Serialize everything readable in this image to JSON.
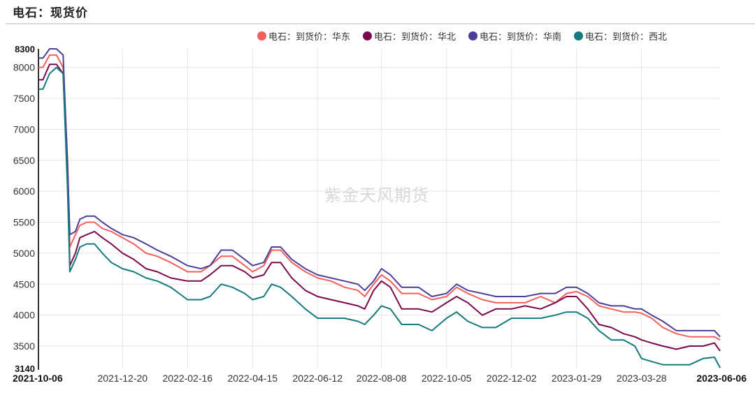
{
  "header": {
    "title": "电石：现货价"
  },
  "watermark": "紫金天风期货",
  "legend": [
    {
      "label": "电石：到货价：华东",
      "color": "#F25F5C"
    },
    {
      "label": "电石：到货价：华北",
      "color": "#7A0A4E"
    },
    {
      "label": "电石：到货价：华南",
      "color": "#4B3F9A"
    },
    {
      "label": "电石：到货价：西北",
      "color": "#157A80"
    }
  ],
  "chart_data": {
    "type": "line",
    "title": "电石：现货价",
    "xlabel": "",
    "ylabel": "",
    "ylim": [
      3140,
      8300
    ],
    "yticks": [
      3140,
      3500,
      4000,
      4500,
      5000,
      5500,
      6000,
      6500,
      7000,
      7500,
      8000,
      8300
    ],
    "xticks": [
      "2021-10-06",
      "2021-12-20",
      "2022-02-16",
      "2022-04-15",
      "2022-06-12",
      "2022-08-08",
      "2022-10-05",
      "2022-12-02",
      "2023-01-29",
      "2023-03-28",
      "2023-06-06"
    ],
    "grid": true,
    "legend_position": "top-right",
    "x": [
      "2021-10-06",
      "2021-10-10",
      "2021-10-16",
      "2021-10-22",
      "2021-10-28",
      "2021-11-01",
      "2021-11-03",
      "2021-11-08",
      "2021-11-12",
      "2021-11-18",
      "2021-11-25",
      "2021-12-02",
      "2021-12-10",
      "2021-12-20",
      "2021-12-30",
      "2022-01-10",
      "2022-01-20",
      "2022-02-01",
      "2022-02-16",
      "2022-02-28",
      "2022-03-08",
      "2022-03-18",
      "2022-03-28",
      "2022-04-08",
      "2022-04-15",
      "2022-04-25",
      "2022-05-02",
      "2022-05-10",
      "2022-05-20",
      "2022-06-01",
      "2022-06-12",
      "2022-06-24",
      "2022-07-06",
      "2022-07-18",
      "2022-07-24",
      "2022-08-01",
      "2022-08-08",
      "2022-08-16",
      "2022-08-26",
      "2022-09-10",
      "2022-09-22",
      "2022-10-05",
      "2022-10-14",
      "2022-10-24",
      "2022-11-06",
      "2022-11-18",
      "2022-12-02",
      "2022-12-14",
      "2022-12-28",
      "2023-01-10",
      "2023-01-20",
      "2023-01-29",
      "2023-02-08",
      "2023-02-18",
      "2023-03-01",
      "2023-03-12",
      "2023-03-22",
      "2023-03-28",
      "2023-04-06",
      "2023-04-16",
      "2023-04-28",
      "2023-05-10",
      "2023-05-22",
      "2023-06-01",
      "2023-06-06"
    ],
    "series": [
      {
        "name": "电石：到货价：华东",
        "values": [
          8000,
          8000,
          8200,
          8200,
          8000,
          6500,
          5100,
          5300,
          5450,
          5500,
          5500,
          5400,
          5350,
          5250,
          5150,
          5000,
          4950,
          4850,
          4700,
          4700,
          4800,
          4950,
          4950,
          4800,
          4700,
          4800,
          5050,
          5050,
          4850,
          4700,
          4600,
          4550,
          4450,
          4400,
          4300,
          4500,
          4650,
          4550,
          4350,
          4350,
          4250,
          4300,
          4450,
          4350,
          4250,
          4200,
          4200,
          4200,
          4300,
          4200,
          4350,
          4380,
          4300,
          4150,
          4100,
          4050,
          4050,
          4030,
          3950,
          3800,
          3700,
          3650,
          3650,
          3650,
          3600
        ]
      },
      {
        "name": "电石：到货价：华北",
        "values": [
          7800,
          7800,
          8050,
          8050,
          7900,
          6200,
          4800,
          5000,
          5250,
          5300,
          5350,
          5250,
          5150,
          5000,
          4900,
          4750,
          4700,
          4600,
          4550,
          4550,
          4650,
          4800,
          4800,
          4700,
          4600,
          4650,
          4850,
          4850,
          4600,
          4400,
          4300,
          4250,
          4200,
          4150,
          4100,
          4400,
          4550,
          4450,
          4100,
          4100,
          4050,
          4200,
          4300,
          4200,
          4000,
          4100,
          4100,
          4150,
          4100,
          4200,
          4300,
          4300,
          4100,
          3850,
          3800,
          3700,
          3650,
          3600,
          3550,
          3500,
          3450,
          3500,
          3500,
          3550,
          3420
        ]
      },
      {
        "name": "电石：到货价：华南",
        "values": [
          8150,
          8150,
          8300,
          8300,
          8200,
          6400,
          5300,
          5350,
          5550,
          5600,
          5600,
          5500,
          5400,
          5300,
          5250,
          5150,
          5050,
          4950,
          4800,
          4750,
          4800,
          5050,
          5050,
          4900,
          4800,
          4850,
          5100,
          5100,
          4900,
          4750,
          4650,
          4600,
          4550,
          4500,
          4400,
          4550,
          4750,
          4650,
          4450,
          4450,
          4300,
          4350,
          4500,
          4400,
          4350,
          4300,
          4300,
          4300,
          4350,
          4350,
          4450,
          4450,
          4350,
          4200,
          4150,
          4150,
          4100,
          4100,
          4000,
          3900,
          3750,
          3750,
          3750,
          3750,
          3650
        ]
      },
      {
        "name": "电石：到货价：西北",
        "values": [
          7650,
          7650,
          7900,
          8000,
          7900,
          6000,
          4700,
          4900,
          5100,
          5150,
          5150,
          5000,
          4850,
          4750,
          4700,
          4600,
          4550,
          4450,
          4250,
          4250,
          4300,
          4500,
          4450,
          4350,
          4250,
          4300,
          4500,
          4450,
          4300,
          4100,
          3950,
          3950,
          3950,
          3900,
          3850,
          4000,
          4150,
          4100,
          3850,
          3850,
          3750,
          3950,
          4050,
          3900,
          3800,
          3800,
          3950,
          3950,
          3950,
          4000,
          4050,
          4050,
          3950,
          3750,
          3600,
          3600,
          3500,
          3300,
          3250,
          3200,
          3200,
          3200,
          3300,
          3320,
          3150
        ]
      }
    ]
  },
  "axis": {
    "y_top_label": "8300",
    "y_bottom_label": "3140",
    "x_first_label": "2021-10-06",
    "x_last_label": "2023-06-06"
  }
}
